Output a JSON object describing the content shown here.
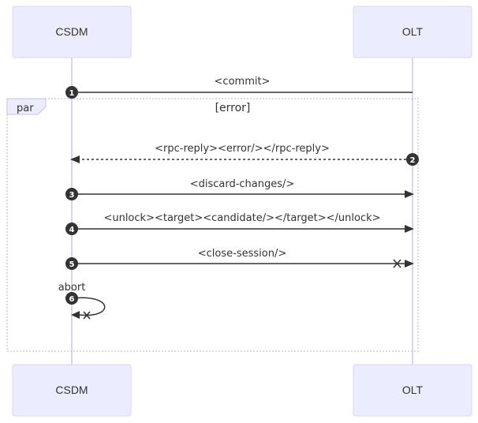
{
  "participants": {
    "left": "CSDM",
    "right": "OLT"
  },
  "messages": [
    {
      "num": "1",
      "label": "<commit>"
    },
    {
      "num": "2",
      "label": "<rpc-reply><error/></rpc-reply>"
    },
    {
      "num": "3",
      "label": "<discard-changes/>"
    },
    {
      "num": "4",
      "label": "<unlock><target><candidate/></target></unlock>"
    },
    {
      "num": "5",
      "label": "<close-session/>"
    },
    {
      "num": "6",
      "label": "abort"
    }
  ],
  "frame": {
    "keyword": "par",
    "condition": "[error]"
  },
  "colors": {
    "actor_fill": "#ECECFF",
    "line": "#333333",
    "frame_border": "#c3c3ea"
  }
}
